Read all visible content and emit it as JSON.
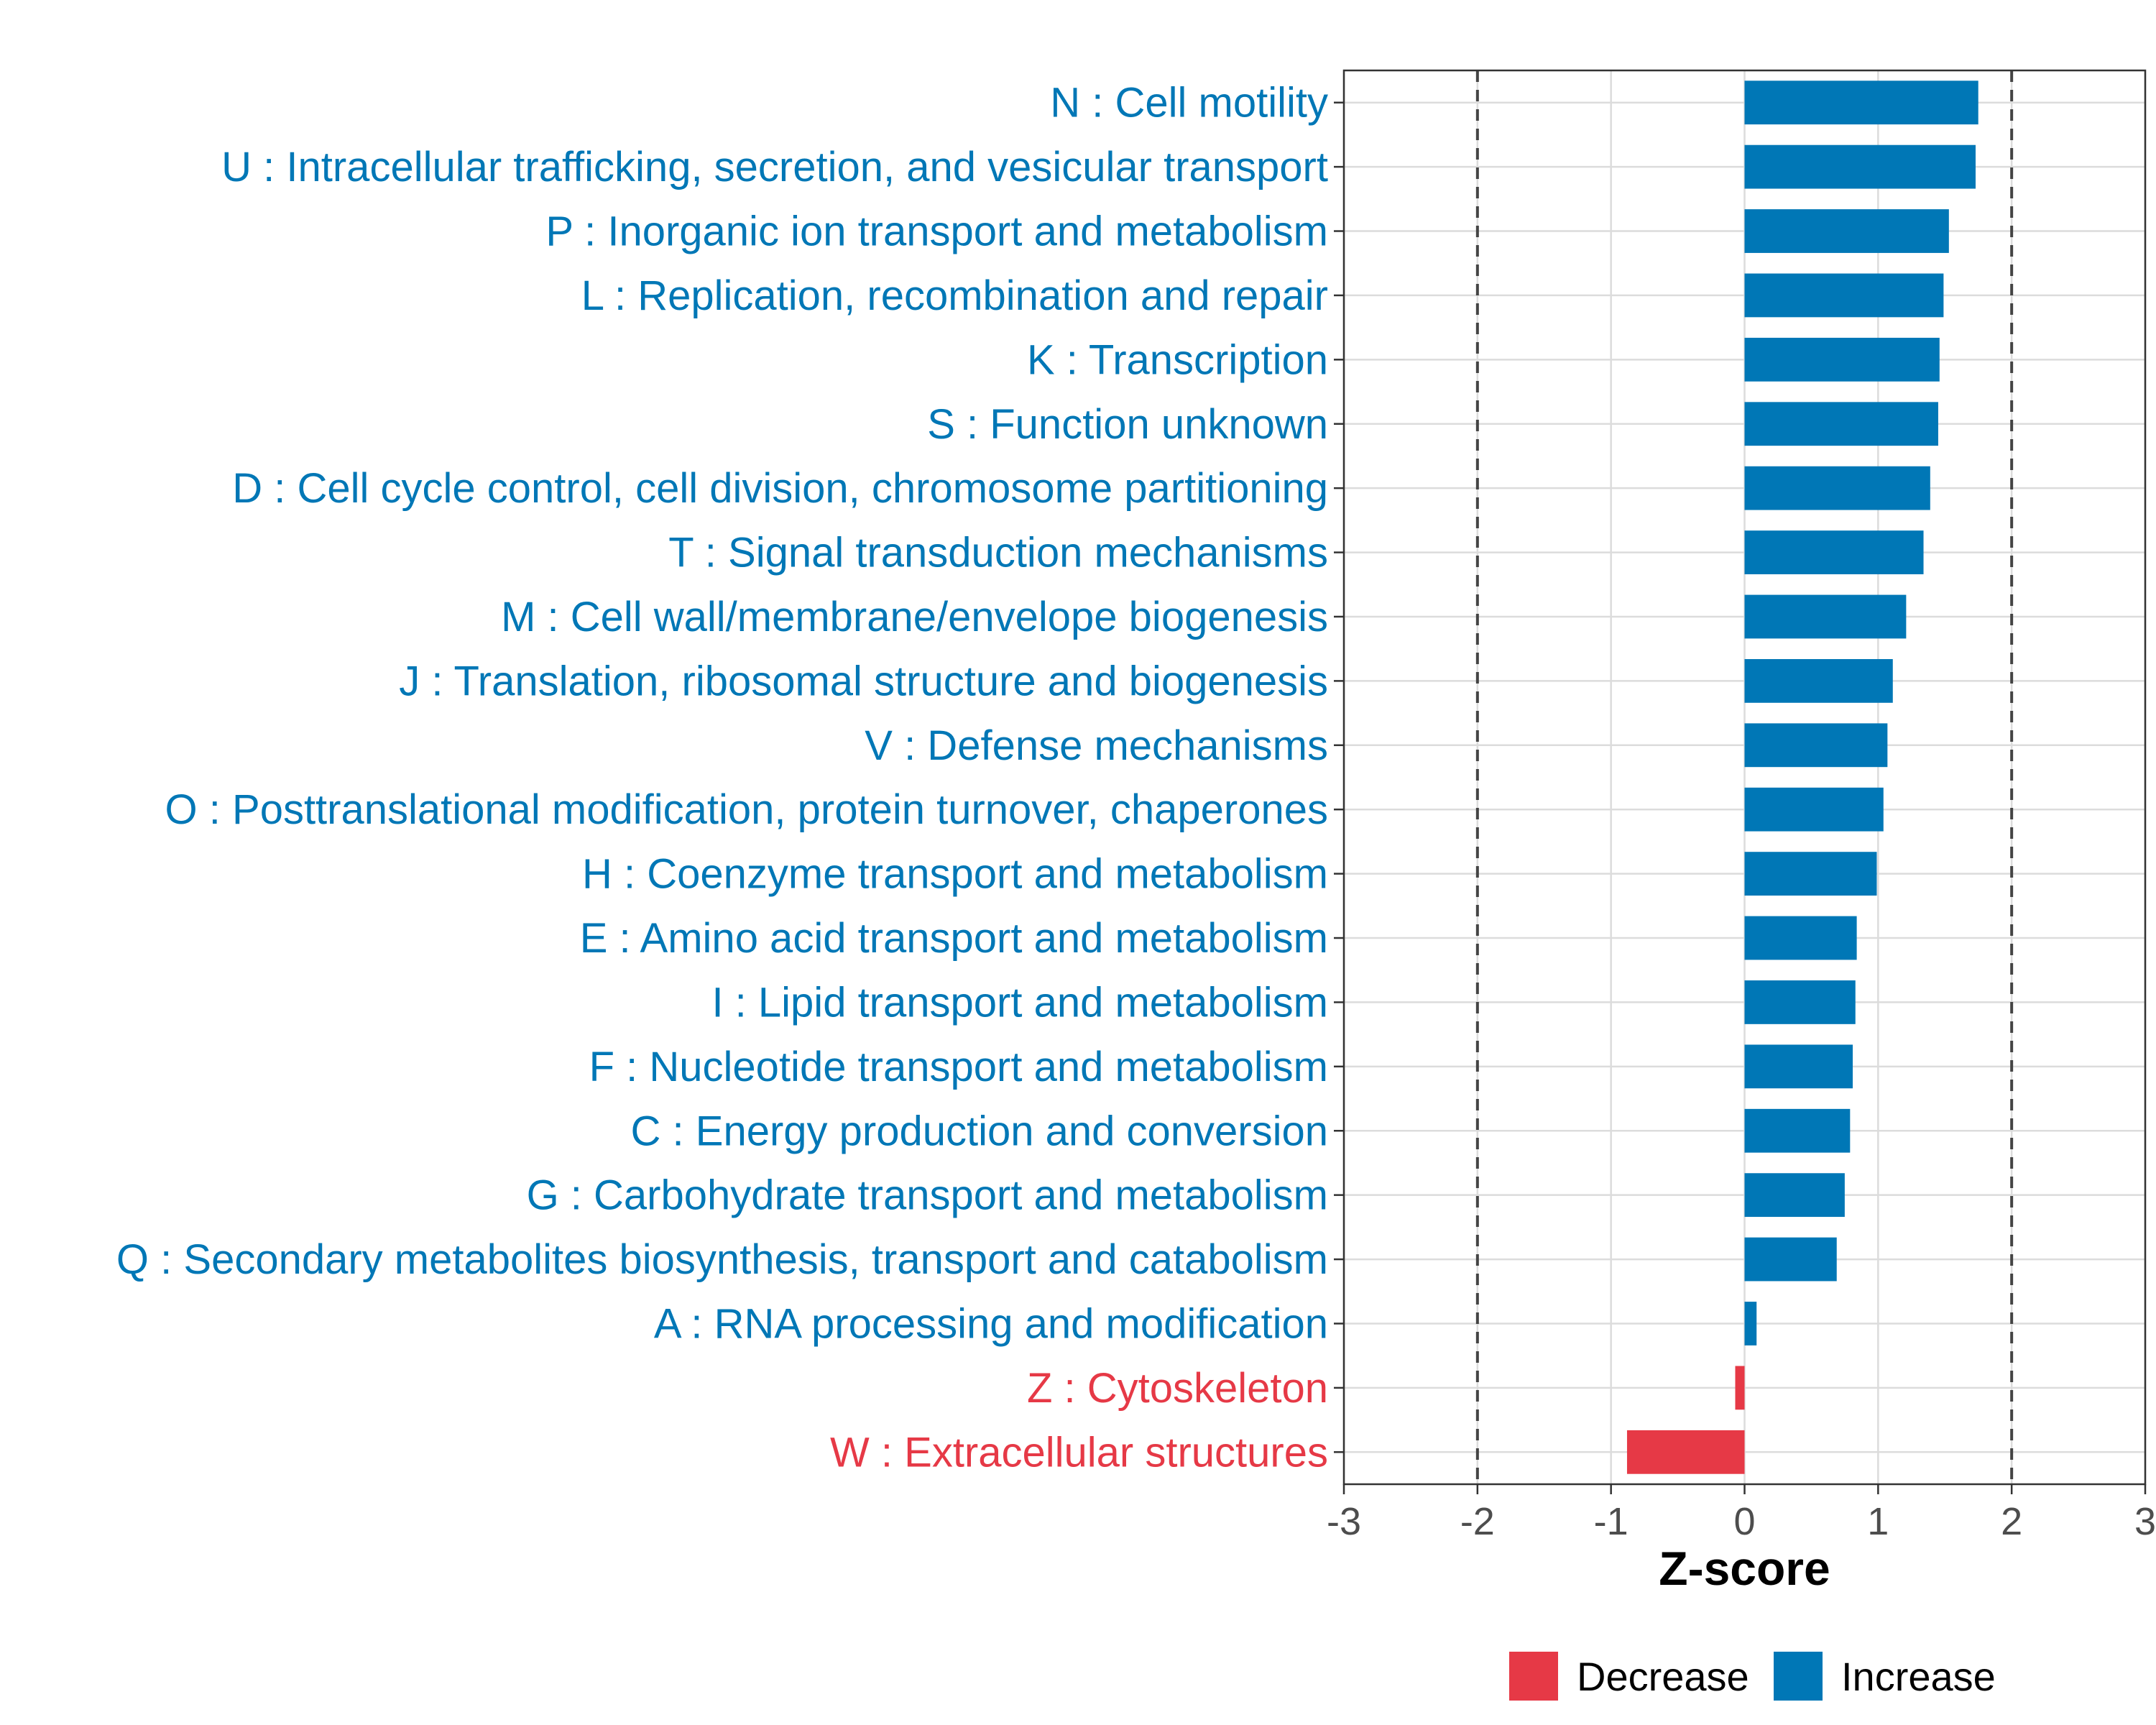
{
  "chart_data": {
    "type": "bar",
    "orientation": "horizontal",
    "title": "",
    "xlabel": "Z-score",
    "ylabel": "",
    "xlim": [
      -3,
      3
    ],
    "x_ticks": [
      -3,
      -2,
      -1,
      0,
      1,
      2,
      3
    ],
    "reference_lines": [
      -2,
      2
    ],
    "grid": true,
    "legend_position": "bottom",
    "colors": {
      "Decrease": "#e63946",
      "Increase": "#0077b6"
    },
    "legend": [
      "Decrease",
      "Increase"
    ],
    "categories": [
      "N : Cell motility",
      "U : Intracellular trafficking, secretion, and vesicular transport",
      "P : Inorganic ion transport and metabolism",
      "L : Replication, recombination and repair",
      "K : Transcription",
      "S : Function unknown",
      "D : Cell cycle control, cell division, chromosome partitioning",
      "T : Signal transduction mechanisms",
      "M : Cell wall/membrane/envelope biogenesis",
      "J : Translation, ribosomal structure and biogenesis",
      "V : Defense mechanisms",
      "O : Posttranslational modification, protein turnover, chaperones",
      "H : Coenzyme transport and metabolism",
      "E : Amino acid transport and metabolism",
      "I : Lipid transport and metabolism",
      "F : Nucleotide transport and metabolism",
      "C : Energy production and conversion",
      "G : Carbohydrate transport and metabolism",
      "Q : Secondary metabolites biosynthesis, transport and catabolism",
      "A : RNA processing and modification",
      "Z : Cytoskeleton",
      "W : Extracellular structures"
    ],
    "values": [
      1.75,
      1.73,
      1.53,
      1.49,
      1.46,
      1.45,
      1.39,
      1.34,
      1.21,
      1.11,
      1.07,
      1.04,
      0.99,
      0.84,
      0.83,
      0.81,
      0.79,
      0.75,
      0.69,
      0.09,
      -0.07,
      -0.88
    ],
    "groups": [
      "Increase",
      "Increase",
      "Increase",
      "Increase",
      "Increase",
      "Increase",
      "Increase",
      "Increase",
      "Increase",
      "Increase",
      "Increase",
      "Increase",
      "Increase",
      "Increase",
      "Increase",
      "Increase",
      "Increase",
      "Increase",
      "Increase",
      "Increase",
      "Decrease",
      "Decrease"
    ]
  }
}
